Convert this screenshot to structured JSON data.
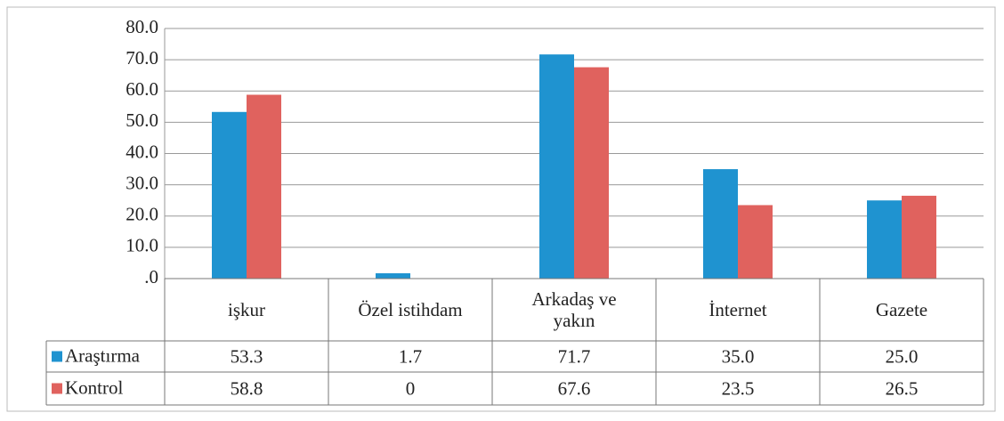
{
  "chart_data": {
    "type": "bar",
    "categories": [
      "işkur",
      "Özel istihdam",
      "Arkadaş ve yakın",
      "İnternet",
      "Gazete"
    ],
    "series": [
      {
        "name": "Araştırma",
        "color": "#1f93d0",
        "values": [
          53.3,
          1.7,
          71.7,
          35.0,
          25.0
        ],
        "value_labels": [
          "53.3",
          "1.7",
          "71.7",
          "35.0",
          "25.0"
        ]
      },
      {
        "name": "Kontrol",
        "color": "#e0625e",
        "values": [
          58.8,
          0,
          67.6,
          23.5,
          26.5
        ],
        "value_labels": [
          "58.8",
          "0",
          "67.6",
          "23.5",
          "26.5"
        ]
      }
    ],
    "ylim": [
      0,
      80
    ],
    "yticks": [
      {
        "value": 0,
        "label": ".0"
      },
      {
        "value": 10,
        "label": "10.0"
      },
      {
        "value": 20,
        "label": "20.0"
      },
      {
        "value": 30,
        "label": "30.0"
      },
      {
        "value": 40,
        "label": "40.0"
      },
      {
        "value": 50,
        "label": "50.0"
      },
      {
        "value": 60,
        "label": "60.0"
      },
      {
        "value": 70,
        "label": "70.0"
      },
      {
        "value": 80,
        "label": "80.0"
      }
    ],
    "grid": true
  }
}
